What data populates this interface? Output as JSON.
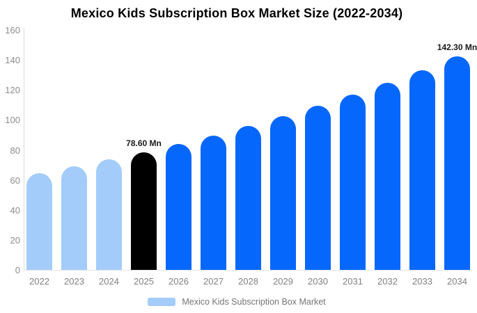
{
  "title": "Mexico Kids Subscription Box Market Size (2022-2034)",
  "chart_data": {
    "type": "bar",
    "title": "Mexico Kids Subscription Box Market Size (2022-2034)",
    "categories": [
      "2022",
      "2023",
      "2024",
      "2025",
      "2026",
      "2027",
      "2028",
      "2029",
      "2030",
      "2031",
      "2032",
      "2033",
      "2034"
    ],
    "values": [
      64.5,
      68.9,
      73.6,
      78.6,
      84.0,
      89.7,
      95.8,
      102.3,
      109.3,
      116.7,
      124.7,
      133.2,
      142.3
    ],
    "unit": "Mn",
    "point_labels": [
      "",
      "",
      "",
      "78.60 Mn",
      "",
      "",
      "",
      "",
      "",
      "",
      "",
      "",
      "142.30 Mn"
    ],
    "bar_colors": [
      "#a3ccfa",
      "#a3ccfa",
      "#a3ccfa",
      "#000000",
      "#0667fc",
      "#0667fc",
      "#0667fc",
      "#0667fc",
      "#0667fc",
      "#0667fc",
      "#0667fc",
      "#0667fc",
      "#0667fc"
    ],
    "ylim": [
      0,
      160
    ],
    "y_ticks": [
      0,
      20,
      40,
      60,
      80,
      100,
      120,
      140,
      160
    ],
    "grid": "off",
    "legend_position": "bottom"
  },
  "legend": {
    "label": "Mexico Kids Subscription Box Market",
    "swatch_color": "#a3ccfa"
  },
  "colors": {
    "light_blue": "#a3ccfa",
    "highlight_black": "#000000",
    "bright_blue": "#0667fc",
    "axis_line": "#dddddd",
    "baseline": "#e4e4e4",
    "tick_text": "#8c8c8c",
    "data_label_text": "#1a1a1a",
    "legend_text": "#757575",
    "title_text": "#000000",
    "background": "#ffffff"
  }
}
